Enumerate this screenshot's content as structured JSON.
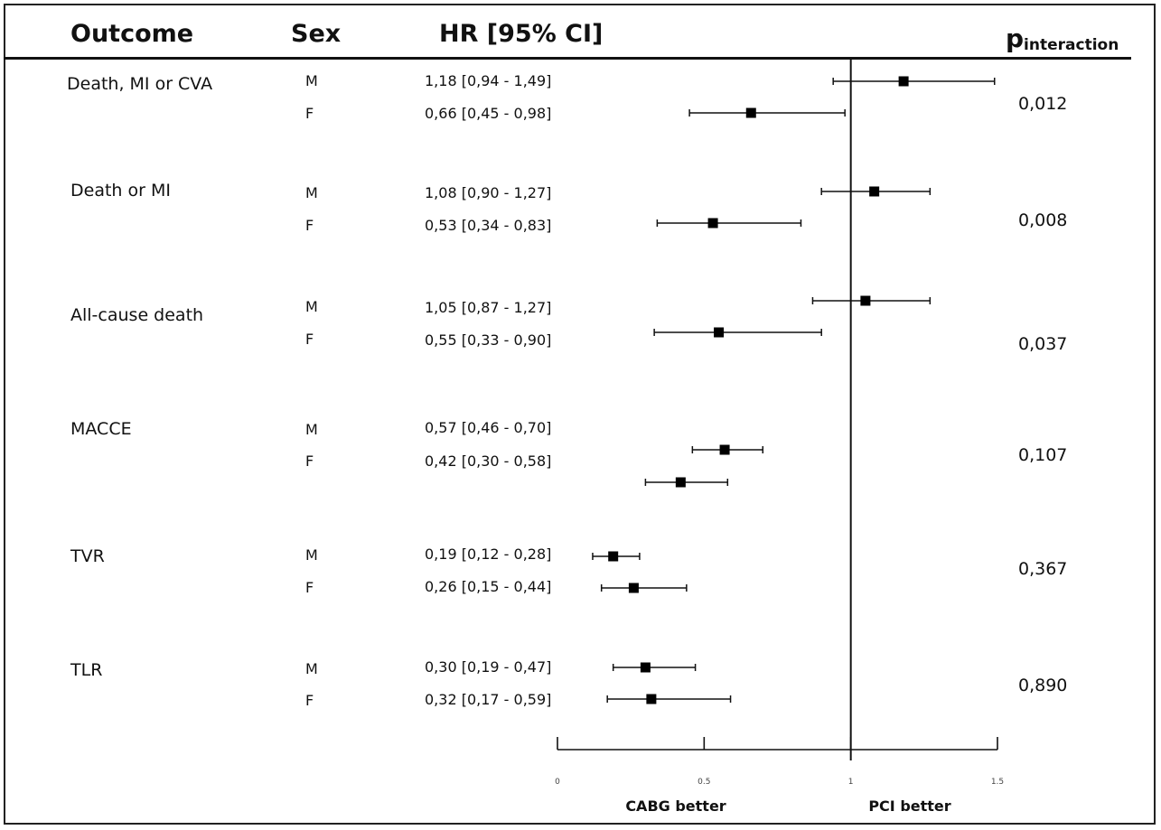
{
  "headers": {
    "outcome": "Outcome",
    "sex": "Sex",
    "hr": "HR [95% CI]",
    "p": "p",
    "p_sub": "interaction"
  },
  "rows": [
    {
      "outcome": "Death, MI or CVA",
      "p": "0,012",
      "entries": [
        {
          "sex": "M",
          "hr_text": "1,18 [0,94 - 1,49]"
        },
        {
          "sex": "F",
          "hr_text": "0,66 [0,45 - 0,98]"
        }
      ]
    },
    {
      "outcome": "Death or MI",
      "p": "0,008",
      "entries": [
        {
          "sex": "M",
          "hr_text": "1,08 [0,90 - 1,27]"
        },
        {
          "sex": "F",
          "hr_text": "0,53 [0,34 - 0,83]"
        }
      ]
    },
    {
      "outcome": "All-cause death",
      "p": "0,037",
      "entries": [
        {
          "sex": "M",
          "hr_text": "1,05 [0,87 - 1,27]"
        },
        {
          "sex": "F",
          "hr_text": "0,55 [0,33 - 0,90]"
        }
      ]
    },
    {
      "outcome": "MACCE",
      "p": "0,107",
      "entries": [
        {
          "sex": "M",
          "hr_text": "0,57 [0,46 - 0,70]"
        },
        {
          "sex": "F",
          "hr_text": "0,42 [0,30 - 0,58]"
        }
      ]
    },
    {
      "outcome": "TVR",
      "p": "0,367",
      "entries": [
        {
          "sex": "M",
          "hr_text": "0,19 [0,12 - 0,28]"
        },
        {
          "sex": "F",
          "hr_text": "0,26 [0,15 - 0,44]"
        }
      ]
    },
    {
      "outcome": "TLR",
      "p": "0,890",
      "entries": [
        {
          "sex": "M",
          "hr_text": "0,30 [0,19 - 0,47]"
        },
        {
          "sex": "F",
          "hr_text": "0,32 [0,17 - 0,59]"
        }
      ]
    }
  ],
  "axis": {
    "ticks": [
      "0",
      "0.5",
      "1",
      "1.5"
    ],
    "left_note": "CABG better",
    "right_note": "PCI better"
  },
  "chart_data": {
    "type": "scatter",
    "subtype": "forest-plot",
    "title": "",
    "xlabel": "",
    "xlim": [
      0,
      1.5
    ],
    "reference_line": 1,
    "series": [
      {
        "name": "M",
        "points": [
          {
            "y": "Death, MI or CVA",
            "hr": 1.18,
            "lo": 0.94,
            "hi": 1.49
          },
          {
            "y": "Death or MI",
            "hr": 1.08,
            "lo": 0.9,
            "hi": 1.27
          },
          {
            "y": "All-cause death",
            "hr": 1.05,
            "lo": 0.87,
            "hi": 1.27
          },
          {
            "y": "MACCE",
            "hr": 0.57,
            "lo": 0.46,
            "hi": 0.7
          },
          {
            "y": "TVR",
            "hr": 0.19,
            "lo": 0.12,
            "hi": 0.28
          },
          {
            "y": "TLR",
            "hr": 0.3,
            "lo": 0.19,
            "hi": 0.47
          }
        ]
      },
      {
        "name": "F",
        "points": [
          {
            "y": "Death, MI or CVA",
            "hr": 0.66,
            "lo": 0.45,
            "hi": 0.98
          },
          {
            "y": "Death or MI",
            "hr": 0.53,
            "lo": 0.34,
            "hi": 0.83
          },
          {
            "y": "All-cause death",
            "hr": 0.55,
            "lo": 0.33,
            "hi": 0.9
          },
          {
            "y": "MACCE",
            "hr": 0.42,
            "lo": 0.3,
            "hi": 0.58
          },
          {
            "y": "TVR",
            "hr": 0.26,
            "lo": 0.15,
            "hi": 0.44
          },
          {
            "y": "TLR",
            "hr": 0.32,
            "lo": 0.17,
            "hi": 0.59
          }
        ]
      }
    ]
  }
}
